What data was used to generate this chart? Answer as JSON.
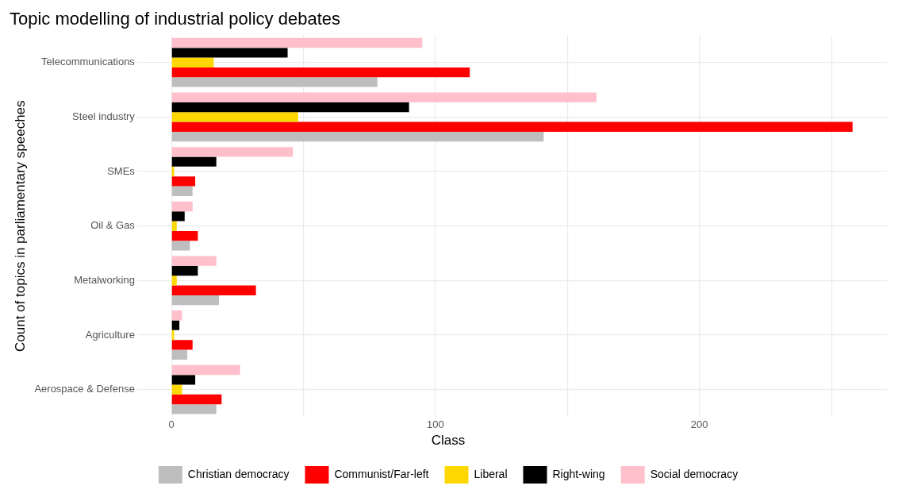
{
  "chart_data": {
    "type": "bar",
    "orientation": "horizontal",
    "title": "Topic modelling of industrial policy debates",
    "ylabel": "Count of topics in parliamentary speeches",
    "legend_title": "Class",
    "legend": "bottom",
    "grid": true,
    "categories": [
      "Telecommunications",
      "Steel industry",
      "SMEs",
      "Oil & Gas",
      "Metalworking",
      "Agriculture",
      "Aerospace & Defense"
    ],
    "xlim": [
      -13,
      271
    ],
    "xticks": [
      0,
      {
        "value": 50,
        "label": null
      },
      100,
      {
        "value": 150,
        "label": null
      },
      200,
      {
        "value": 250,
        "label": null
      }
    ],
    "series": [
      {
        "name": "Christian democracy",
        "color": "#bebebe",
        "values": [
          78,
          141,
          8,
          7,
          18,
          6,
          17
        ]
      },
      {
        "name": "Communist/Far-left",
        "color": "#ff0000",
        "values": [
          113,
          258,
          9,
          10,
          32,
          8,
          19
        ]
      },
      {
        "name": "Liberal",
        "color": "#ffd700",
        "values": [
          16,
          48,
          1,
          2,
          2,
          1,
          4
        ]
      },
      {
        "name": "Right-wing",
        "color": "#000000",
        "values": [
          44,
          90,
          17,
          5,
          10,
          3,
          9
        ]
      },
      {
        "name": "Social democracy",
        "color": "#ffc0cb",
        "values": [
          95,
          161,
          46,
          8,
          17,
          4,
          26
        ]
      }
    ]
  }
}
